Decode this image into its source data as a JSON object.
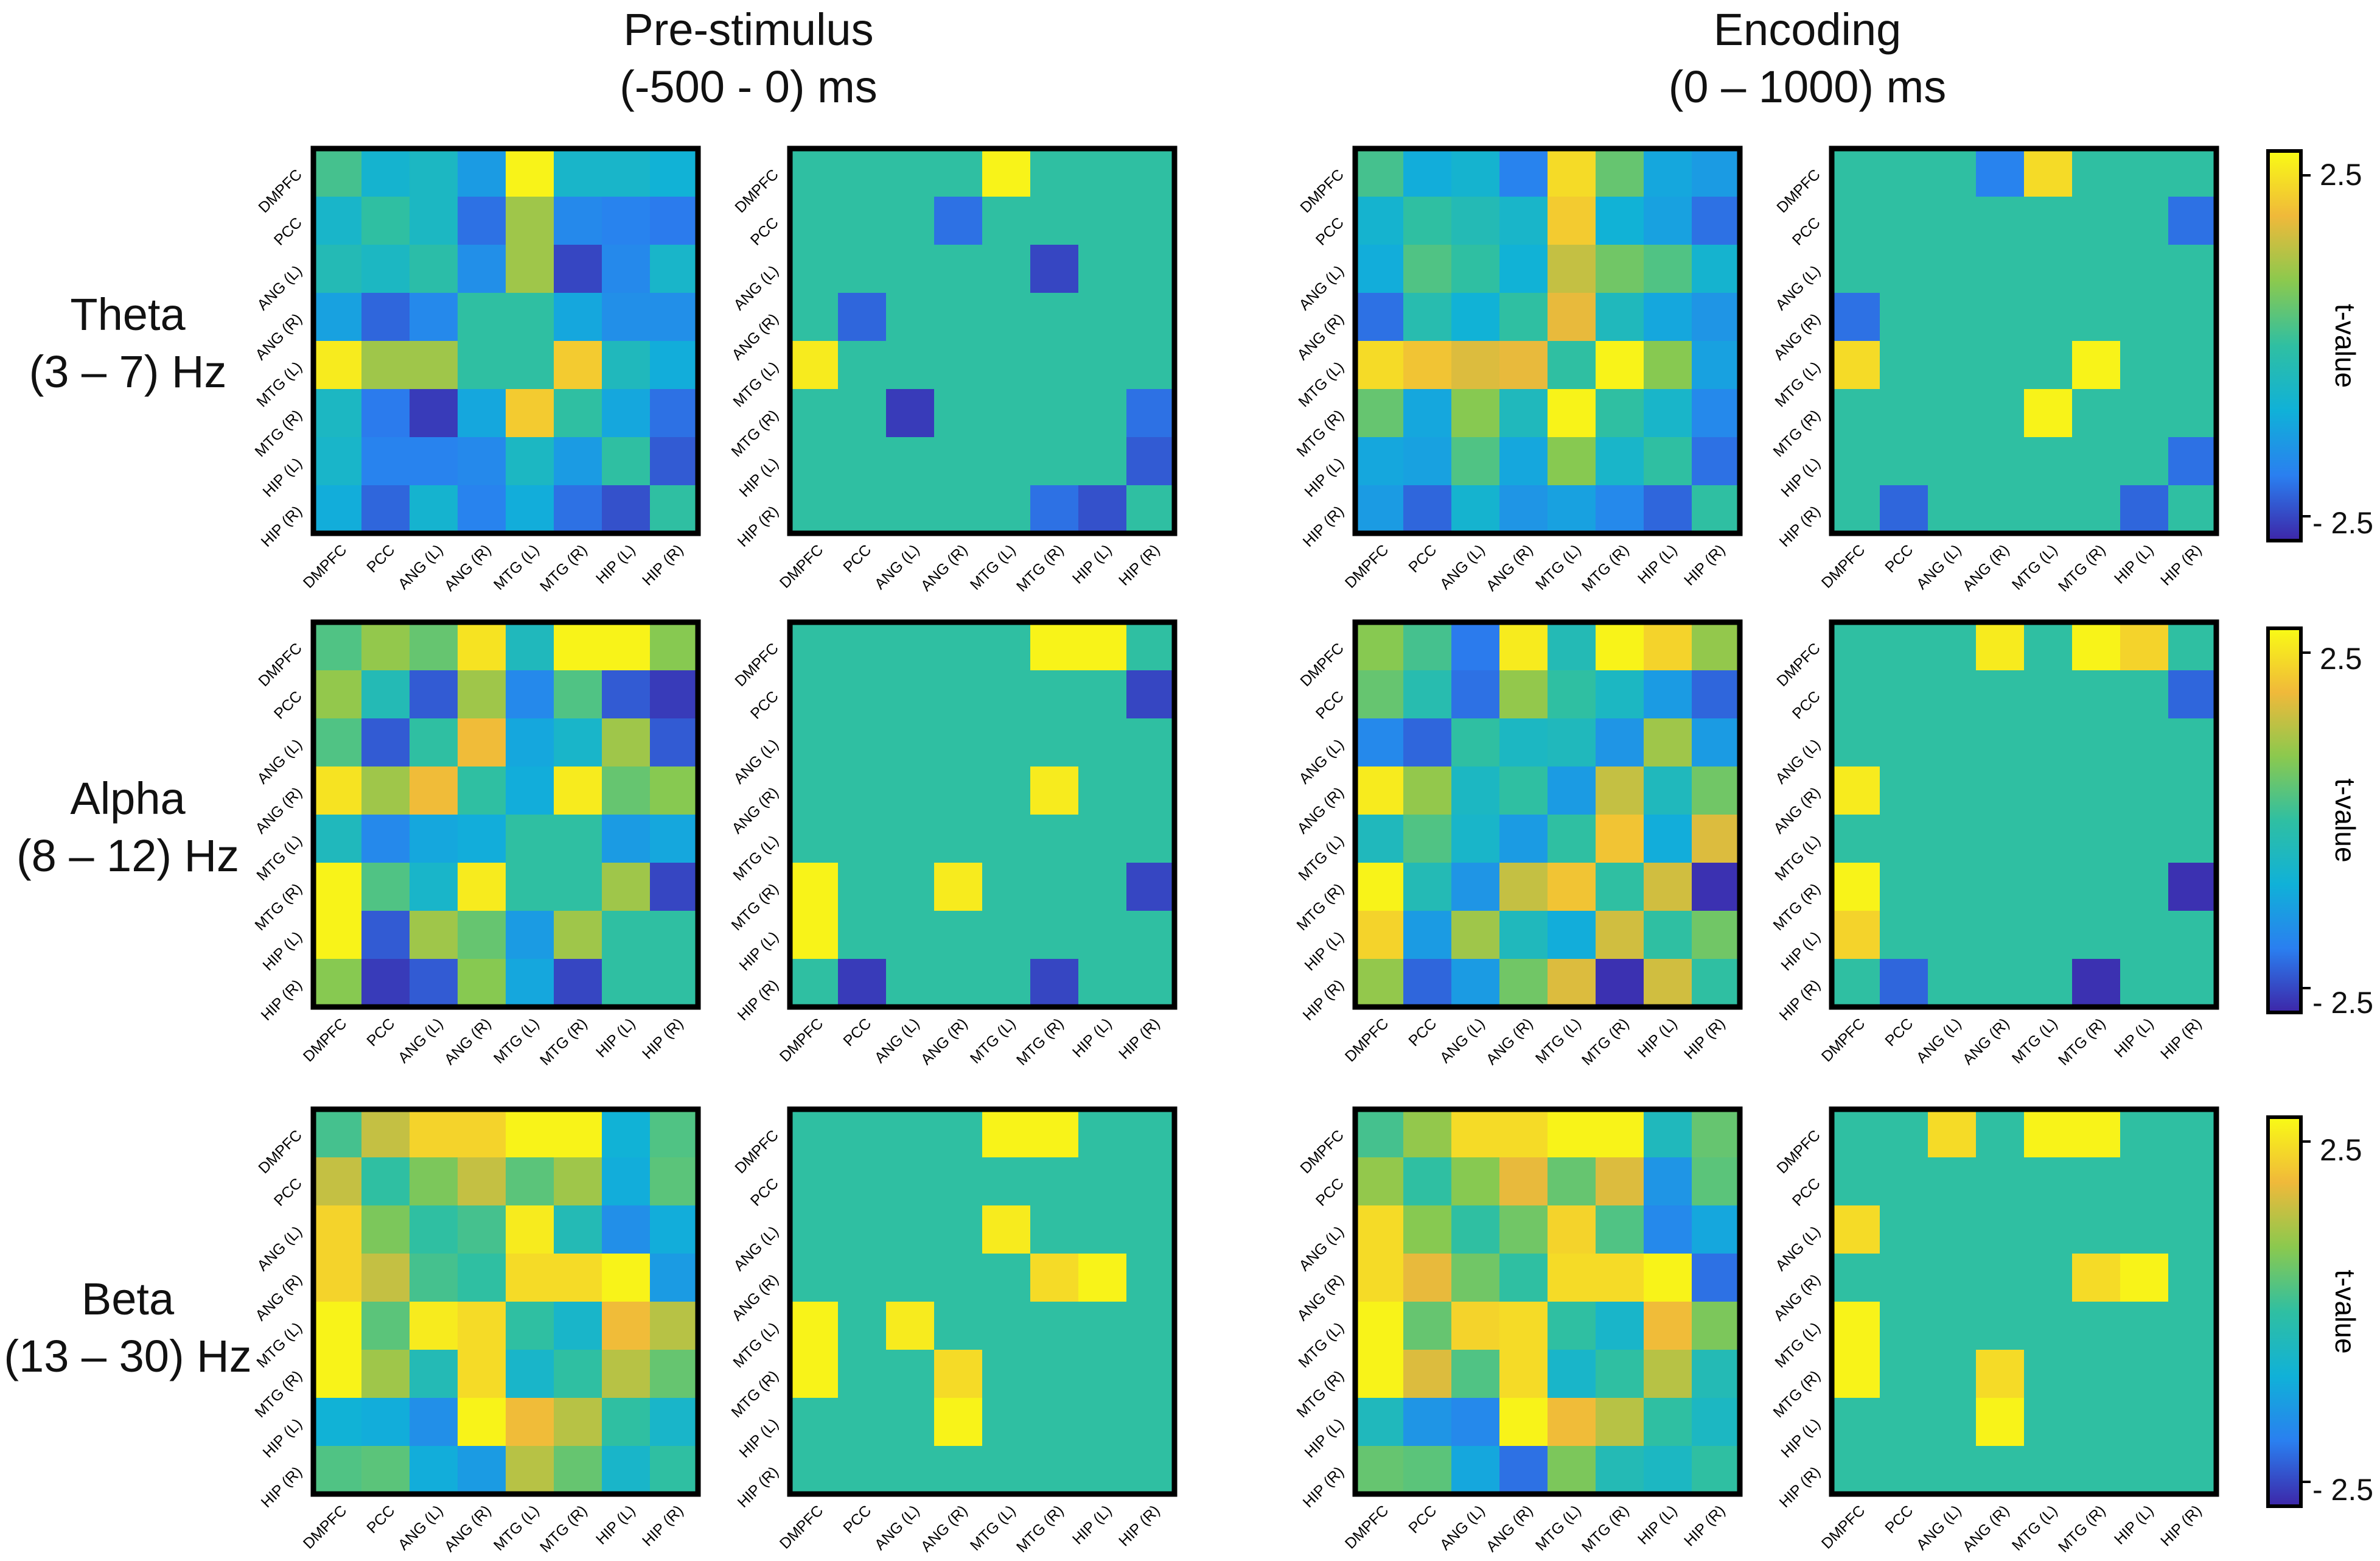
{
  "columns": [
    {
      "title": "Pre-stimulus",
      "subtitle": "(-500 - 0) ms"
    },
    {
      "title": "Encoding",
      "subtitle": "(0 – 1000) ms"
    }
  ],
  "rows": [
    {
      "title": "Theta",
      "subtitle": "(3 – 7) Hz"
    },
    {
      "title": "Alpha",
      "subtitle": "(8 – 12) Hz"
    },
    {
      "title": "Beta",
      "subtitle": "(13 – 30) Hz"
    }
  ],
  "colorbar": {
    "label": "t-value",
    "max_label": "2.5",
    "min_label": "- 2.5",
    "colors": [
      "#3d26a8",
      "#2a7ff0",
      "#10b1d8",
      "#2fbfa2",
      "#8bc94e",
      "#f0b93a",
      "#f9fb15"
    ]
  },
  "chart_data": {
    "type": "heatmap",
    "labels": [
      "DMPFC",
      "PCC",
      "ANG (L)",
      "ANG (R)",
      "MTG (L)",
      "MTG (R)",
      "HIP (L)",
      "HIP (R)"
    ],
    "vmin": -2.5,
    "vmax": 2.5,
    "panels": [
      {
        "row": "Theta",
        "column": "Pre-stimulus",
        "kind": "all",
        "values": [
          [
            0.2,
            -0.7,
            -0.5,
            -1.2,
            2.4,
            -0.6,
            -0.6,
            -0.8
          ],
          [
            -0.6,
            0,
            -0.5,
            -1.8,
            1.0,
            -1.5,
            -1.6,
            -1.7
          ],
          [
            -0.3,
            -0.5,
            -0.1,
            -1.4,
            1.0,
            -2.2,
            -1.5,
            -0.6
          ],
          [
            -1.1,
            -1.9,
            -1.5,
            0,
            0,
            -1.0,
            -1.4,
            -1.4
          ],
          [
            2.3,
            1.0,
            1.0,
            0,
            0,
            1.9,
            -0.4,
            -0.9
          ],
          [
            -0.5,
            -1.7,
            -2.3,
            -1.0,
            1.9,
            0,
            -1.0,
            -1.8
          ],
          [
            -0.6,
            -1.6,
            -1.6,
            -1.5,
            -0.5,
            -1.2,
            0,
            -2.0
          ],
          [
            -0.9,
            -1.9,
            -0.7,
            -1.6,
            -0.9,
            -1.8,
            -2.1,
            0
          ]
        ]
      },
      {
        "row": "Theta",
        "column": "Pre-stimulus",
        "kind": "significant",
        "values": [
          [
            0,
            0,
            0,
            0,
            2.4,
            0,
            0,
            0
          ],
          [
            0,
            0,
            0,
            -1.8,
            0,
            0,
            0,
            0
          ],
          [
            0,
            0,
            0,
            0,
            0,
            -2.2,
            0,
            0
          ],
          [
            0,
            -1.9,
            0,
            0,
            0,
            0,
            0,
            0
          ],
          [
            2.3,
            0,
            0,
            0,
            0,
            0,
            0,
            0
          ],
          [
            0,
            0,
            -2.3,
            0,
            0,
            0,
            0,
            -1.8
          ],
          [
            0,
            0,
            0,
            0,
            0,
            0,
            0,
            -2.0
          ],
          [
            0,
            0,
            0,
            0,
            0,
            -1.8,
            -2.1,
            0
          ]
        ]
      },
      {
        "row": "Theta",
        "column": "Encoding",
        "kind": "all",
        "values": [
          [
            0.2,
            -0.9,
            -0.7,
            -1.6,
            2.1,
            0.5,
            -1.0,
            -1.2
          ],
          [
            -0.7,
            0,
            -0.3,
            -0.6,
            1.9,
            -0.8,
            -1.1,
            -1.8
          ],
          [
            -0.9,
            0.3,
            0,
            -0.8,
            1.3,
            0.6,
            0.3,
            -0.7
          ],
          [
            -1.8,
            -0.2,
            -0.8,
            0,
            1.6,
            -0.4,
            -1.0,
            -1.3
          ],
          [
            2.1,
            1.8,
            1.5,
            1.6,
            0,
            2.4,
            0.8,
            -1.1
          ],
          [
            0.5,
            -1.0,
            0.8,
            -0.4,
            2.4,
            0,
            -0.6,
            -1.5
          ],
          [
            -1.0,
            -1.1,
            0.3,
            -1.0,
            0.8,
            -0.6,
            0,
            -1.8
          ],
          [
            -1.2,
            -1.9,
            -0.7,
            -1.3,
            -1.1,
            -1.5,
            -1.9,
            0
          ]
        ]
      },
      {
        "row": "Theta",
        "column": "Encoding",
        "kind": "significant",
        "values": [
          [
            0,
            0,
            0,
            -1.6,
            2.1,
            0,
            0,
            0
          ],
          [
            0,
            0,
            0,
            0,
            0,
            0,
            0,
            -1.8
          ],
          [
            0,
            0,
            0,
            0,
            0,
            0,
            0,
            0
          ],
          [
            -1.8,
            0,
            0,
            0,
            0,
            0,
            0,
            0
          ],
          [
            2.1,
            0,
            0,
            0,
            0,
            2.4,
            0,
            0
          ],
          [
            0,
            0,
            0,
            0,
            2.4,
            0,
            0,
            0
          ],
          [
            0,
            0,
            0,
            0,
            0,
            0,
            0,
            -1.8
          ],
          [
            0,
            -1.9,
            0,
            0,
            0,
            0,
            -1.9,
            0
          ]
        ]
      },
      {
        "row": "Alpha",
        "column": "Pre-stimulus",
        "kind": "all",
        "values": [
          [
            0.3,
            0.9,
            0.5,
            2.2,
            -0.4,
            2.4,
            2.4,
            0.8
          ],
          [
            0.9,
            -0.3,
            -2.0,
            1.0,
            -1.5,
            0.3,
            -2.0,
            -2.3
          ],
          [
            0.3,
            -2.0,
            0,
            1.7,
            -1.0,
            -0.6,
            1.0,
            -2.0
          ],
          [
            2.2,
            1.0,
            1.7,
            0,
            -0.9,
            2.3,
            0.5,
            0.8
          ],
          [
            -0.4,
            -1.5,
            -1.0,
            -0.9,
            0,
            0,
            -1.2,
            -1.0
          ],
          [
            2.4,
            0.3,
            -0.6,
            2.3,
            0,
            0,
            1.0,
            -2.2
          ],
          [
            2.4,
            -2.0,
            1.0,
            0.5,
            -1.2,
            1.0,
            0,
            0
          ],
          [
            0.8,
            -2.3,
            -2.0,
            0.8,
            -1.0,
            -2.2,
            0,
            0
          ]
        ]
      },
      {
        "row": "Alpha",
        "column": "Pre-stimulus",
        "kind": "significant",
        "values": [
          [
            0,
            0,
            0,
            0,
            0,
            2.4,
            2.4,
            0
          ],
          [
            0,
            0,
            0,
            0,
            0,
            0,
            0,
            -2.2
          ],
          [
            0,
            0,
            0,
            0,
            0,
            0,
            0,
            0
          ],
          [
            0,
            0,
            0,
            0,
            0,
            2.3,
            0,
            0
          ],
          [
            0,
            0,
            0,
            0,
            0,
            0,
            0,
            0
          ],
          [
            2.4,
            0,
            0,
            2.3,
            0,
            0,
            0,
            -2.2
          ],
          [
            2.4,
            0,
            0,
            0,
            0,
            0,
            0,
            0
          ],
          [
            0,
            -2.3,
            0,
            0,
            0,
            -2.2,
            0,
            0
          ]
        ]
      },
      {
        "row": "Alpha",
        "column": "Encoding",
        "kind": "all",
        "values": [
          [
            0.8,
            0.2,
            -1.7,
            2.3,
            -0.3,
            2.4,
            2.0,
            0.9
          ],
          [
            0.5,
            -0.2,
            -1.8,
            0.9,
            0,
            -0.5,
            -1.2,
            -1.9
          ],
          [
            -1.5,
            -1.9,
            0,
            -0.5,
            -0.4,
            -1.3,
            1.0,
            -1.2
          ],
          [
            2.3,
            0.9,
            -0.5,
            0,
            -1.2,
            1.3,
            -0.4,
            0.6
          ],
          [
            -0.4,
            0.3,
            -0.6,
            -1.2,
            0,
            1.8,
            -0.9,
            1.5
          ],
          [
            2.4,
            -0.3,
            -1.3,
            1.3,
            1.8,
            0,
            1.4,
            -2.4
          ],
          [
            2.0,
            -1.2,
            1.0,
            -0.4,
            -0.9,
            1.4,
            0,
            0.6
          ],
          [
            0.9,
            -1.9,
            -1.2,
            0.6,
            1.5,
            -2.4,
            1.4,
            0
          ]
        ]
      },
      {
        "row": "Alpha",
        "column": "Encoding",
        "kind": "significant",
        "values": [
          [
            0,
            0,
            0,
            2.3,
            0,
            2.4,
            2.0,
            0
          ],
          [
            0,
            0,
            0,
            0,
            0,
            0,
            0,
            -1.9
          ],
          [
            0,
            0,
            0,
            0,
            0,
            0,
            0,
            0
          ],
          [
            2.3,
            0,
            0,
            0,
            0,
            0,
            0,
            0
          ],
          [
            0,
            0,
            0,
            0,
            0,
            0,
            0,
            0
          ],
          [
            2.4,
            0,
            0,
            0,
            0,
            0,
            0,
            -2.4
          ],
          [
            2.0,
            0,
            0,
            0,
            0,
            0,
            0,
            0
          ],
          [
            0,
            -1.9,
            0,
            0,
            0,
            -2.4,
            0,
            0
          ]
        ]
      },
      {
        "row": "Beta",
        "column": "Pre-stimulus",
        "kind": "all",
        "values": [
          [
            0.2,
            1.3,
            2.0,
            2.0,
            2.4,
            2.4,
            -0.8,
            0.3
          ],
          [
            1.3,
            0,
            0.7,
            1.3,
            0.4,
            1.0,
            -0.9,
            0.4
          ],
          [
            2.0,
            0.7,
            0,
            0.2,
            2.3,
            -0.3,
            -1.4,
            -0.9
          ],
          [
            2.0,
            1.3,
            0.2,
            0,
            2.1,
            2.1,
            2.4,
            -1.2
          ],
          [
            2.4,
            0.4,
            2.3,
            2.1,
            0,
            -0.6,
            1.7,
            1.2
          ],
          [
            2.4,
            1.0,
            -0.3,
            2.1,
            -0.6,
            0,
            1.2,
            0.5
          ],
          [
            -0.8,
            -0.9,
            -1.4,
            2.4,
            1.7,
            1.2,
            0,
            -0.6
          ],
          [
            0.3,
            0.4,
            -0.9,
            -1.2,
            1.2,
            0.5,
            -0.6,
            0
          ]
        ]
      },
      {
        "row": "Beta",
        "column": "Pre-stimulus",
        "kind": "significant",
        "values": [
          [
            0,
            0,
            0,
            0,
            2.4,
            2.4,
            0,
            0
          ],
          [
            0,
            0,
            0,
            0,
            0,
            0,
            0,
            0
          ],
          [
            0,
            0,
            0,
            0,
            2.3,
            0,
            0,
            0
          ],
          [
            0,
            0,
            0,
            0,
            0,
            2.1,
            2.4,
            0
          ],
          [
            2.4,
            0,
            2.3,
            0,
            0,
            0,
            0,
            0
          ],
          [
            2.4,
            0,
            0,
            2.1,
            0,
            0,
            0,
            0
          ],
          [
            0,
            0,
            0,
            2.4,
            0,
            0,
            0,
            0
          ],
          [
            0,
            0,
            0,
            0,
            0,
            0,
            0,
            0
          ]
        ]
      },
      {
        "row": "Beta",
        "column": "Encoding",
        "kind": "all",
        "values": [
          [
            0.2,
            0.9,
            2.1,
            2.1,
            2.4,
            2.4,
            -0.4,
            0.5
          ],
          [
            0.9,
            0,
            0.8,
            1.6,
            0.5,
            1.5,
            -1.3,
            0.4
          ],
          [
            2.1,
            0.8,
            0,
            0.6,
            2.0,
            0.3,
            -1.5,
            -1.0
          ],
          [
            2.1,
            1.6,
            0.6,
            0,
            2.1,
            2.1,
            2.4,
            -1.8
          ],
          [
            2.4,
            0.5,
            2.0,
            2.1,
            0,
            -0.6,
            1.7,
            0.7
          ],
          [
            2.4,
            1.5,
            0.3,
            2.1,
            -0.6,
            0,
            1.2,
            -0.3
          ],
          [
            -0.4,
            -1.3,
            -1.5,
            2.4,
            1.7,
            1.2,
            0,
            -0.5
          ],
          [
            0.5,
            0.4,
            -1.0,
            -1.8,
            0.7,
            -0.3,
            -0.5,
            0
          ]
        ]
      },
      {
        "row": "Beta",
        "column": "Encoding",
        "kind": "significant",
        "values": [
          [
            0,
            0,
            2.1,
            0,
            2.4,
            2.4,
            0,
            0
          ],
          [
            0,
            0,
            0,
            0,
            0,
            0,
            0,
            0
          ],
          [
            2.1,
            0,
            0,
            0,
            0,
            0,
            0,
            0
          ],
          [
            0,
            0,
            0,
            0,
            0,
            2.1,
            2.4,
            0
          ],
          [
            2.4,
            0,
            0,
            0,
            0,
            0,
            0,
            0
          ],
          [
            2.4,
            0,
            0,
            2.1,
            0,
            0,
            0,
            0
          ],
          [
            0,
            0,
            0,
            2.4,
            0,
            0,
            0,
            0
          ],
          [
            0,
            0,
            0,
            0,
            0,
            0,
            0,
            0
          ]
        ]
      }
    ]
  }
}
